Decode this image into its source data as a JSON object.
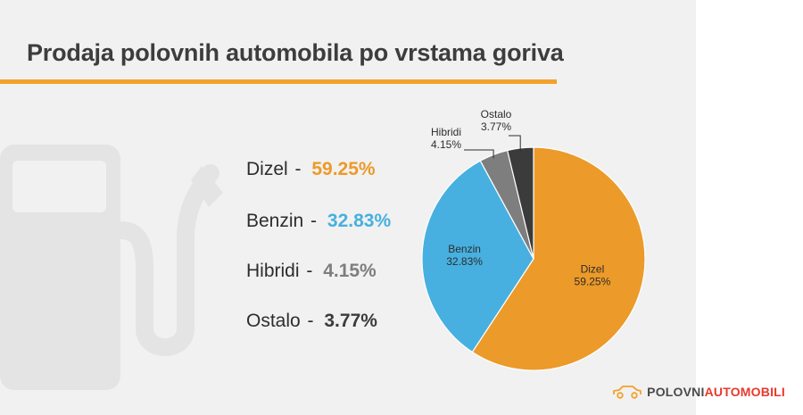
{
  "title": "Prodaja polovnih automobila po vrstama goriva",
  "colors": {
    "accent": "#f2a22b",
    "dizel": "#ec9a29",
    "benzin": "#47b0e0",
    "hibridi": "#7e7e7e",
    "ostalo": "#3b3b3b"
  },
  "legend": [
    {
      "name": "Dizel",
      "value": "59.25%",
      "color": "#ec9a29"
    },
    {
      "name": "Benzin",
      "value": "32.83%",
      "color": "#47b0e0"
    },
    {
      "name": "Hibridi",
      "value": "4.15%",
      "color": "#7e7e7e"
    },
    {
      "name": "Ostalo",
      "value": "3.77%",
      "color": "#3b3b3b"
    }
  ],
  "chart_data": {
    "type": "pie",
    "title": "Prodaja polovnih automobila po vrstama goriva",
    "categories": [
      "Dizel",
      "Benzin",
      "Hibridi",
      "Ostalo"
    ],
    "values": [
      59.25,
      32.83,
      4.15,
      3.77
    ],
    "labels": [
      "59.25%",
      "32.83%",
      "4.15%",
      "3.77%"
    ],
    "colors": [
      "#ec9a29",
      "#47b0e0",
      "#7e7e7e",
      "#3b3b3b"
    ]
  },
  "brand": {
    "part1": "POLOVNI",
    "part2": "AUTOMOBILI",
    "color1": "#4a4a4a",
    "color2": "#e8392b",
    "icon": "car-icon"
  },
  "decor": {
    "icon": "fuel-pump-icon"
  }
}
